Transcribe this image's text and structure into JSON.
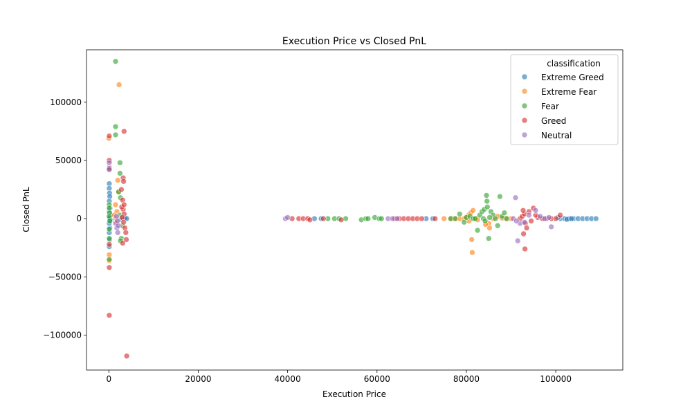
{
  "chart_data": {
    "type": "scatter",
    "title": "Execution Price vs Closed PnL",
    "xlabel": "Execution Price",
    "ylabel": "Closed PnL",
    "xlim": [
      -5000,
      115000
    ],
    "ylim": [
      -130000,
      145000
    ],
    "x_ticks": [
      0,
      20000,
      40000,
      60000,
      80000,
      100000
    ],
    "y_ticks": [
      -100000,
      -50000,
      0,
      50000,
      100000
    ],
    "grid": false,
    "legend": {
      "title": "classification",
      "position": "top-right"
    },
    "series": [
      {
        "name": "Extreme Greed",
        "color": "#1f77b4",
        "points": [
          [
            100,
            30000
          ],
          [
            100,
            26000
          ],
          [
            150,
            22000
          ],
          [
            200,
            19000
          ],
          [
            100,
            15000
          ],
          [
            250,
            9000
          ],
          [
            100,
            6000
          ],
          [
            300,
            3000
          ],
          [
            150,
            1000
          ],
          [
            200,
            0
          ],
          [
            400,
            -1500
          ],
          [
            100,
            -4000
          ],
          [
            200,
            -8000
          ],
          [
            100,
            -12000
          ],
          [
            150,
            -18000
          ],
          [
            100,
            -24000
          ],
          [
            100,
            44000
          ],
          [
            3200,
            0
          ],
          [
            3600,
            500
          ],
          [
            4000,
            0
          ],
          [
            2600,
            -500
          ],
          [
            46000,
            0
          ],
          [
            47500,
            0
          ],
          [
            71000,
            0
          ],
          [
            72500,
            0
          ],
          [
            101000,
            0
          ],
          [
            102000,
            0
          ],
          [
            103000,
            0
          ],
          [
            104000,
            0
          ],
          [
            105000,
            0
          ],
          [
            106000,
            0
          ],
          [
            107000,
            0
          ],
          [
            108000,
            0
          ],
          [
            109000,
            0
          ],
          [
            100500,
            1000
          ],
          [
            102500,
            -600
          ],
          [
            103500,
            0
          ]
        ]
      },
      {
        "name": "Extreme Fear",
        "color": "#ff7f0e",
        "points": [
          [
            2300,
            115000
          ],
          [
            0,
            69000
          ],
          [
            100,
            -31000
          ],
          [
            100,
            -36000
          ],
          [
            1500,
            12000
          ],
          [
            1800,
            6000
          ],
          [
            1200,
            3000
          ],
          [
            1500,
            0
          ],
          [
            2200,
            23000
          ],
          [
            2000,
            33000
          ],
          [
            1700,
            -3000
          ],
          [
            75000,
            0
          ],
          [
            76500,
            0
          ],
          [
            77500,
            0
          ],
          [
            78500,
            0
          ],
          [
            79500,
            0
          ],
          [
            80000,
            1000
          ],
          [
            80500,
            3000
          ],
          [
            81000,
            5000
          ],
          [
            81500,
            7000
          ],
          [
            81200,
            -18000
          ],
          [
            81300,
            -29000
          ],
          [
            80600,
            -2000
          ],
          [
            82000,
            0
          ],
          [
            82500,
            -1000
          ],
          [
            85000,
            -4000
          ],
          [
            85200,
            -8000
          ],
          [
            86000,
            0
          ],
          [
            88000,
            500
          ],
          [
            89000,
            0
          ],
          [
            90000,
            0
          ],
          [
            87000,
            2000
          ],
          [
            84300,
            -5000
          ]
        ]
      },
      {
        "name": "Fear",
        "color": "#2ca02c",
        "points": [
          [
            1500,
            135000
          ],
          [
            1500,
            79000
          ],
          [
            1500,
            72000
          ],
          [
            2500,
            48000
          ],
          [
            2500,
            39000
          ],
          [
            2200,
            23000
          ],
          [
            2600,
            18000
          ],
          [
            100,
            12000
          ],
          [
            100,
            9000
          ],
          [
            150,
            5000
          ],
          [
            100,
            2000
          ],
          [
            200,
            -2000
          ],
          [
            100,
            -9000
          ],
          [
            100,
            -17000
          ],
          [
            100,
            -35000
          ],
          [
            2800,
            -17000
          ],
          [
            2600,
            -19000
          ],
          [
            3000,
            -6000
          ],
          [
            2500,
            3000
          ],
          [
            49000,
            0
          ],
          [
            50500,
            0
          ],
          [
            51500,
            0
          ],
          [
            53000,
            0
          ],
          [
            56500,
            -1000
          ],
          [
            57500,
            0
          ],
          [
            58000,
            0
          ],
          [
            59500,
            1000
          ],
          [
            60500,
            0
          ],
          [
            61000,
            0
          ],
          [
            76500,
            0
          ],
          [
            77500,
            0
          ],
          [
            78500,
            4000
          ],
          [
            79500,
            -3000
          ],
          [
            80000,
            1000
          ],
          [
            80800,
            2000
          ],
          [
            81500,
            0
          ],
          [
            82500,
            -10000
          ],
          [
            83000,
            3000
          ],
          [
            83500,
            6000
          ],
          [
            84000,
            8000
          ],
          [
            84500,
            20000
          ],
          [
            84600,
            15000
          ],
          [
            84700,
            10000
          ],
          [
            85000,
            -17000
          ],
          [
            85500,
            6000
          ],
          [
            86000,
            3000
          ],
          [
            86500,
            0
          ],
          [
            87000,
            -6000
          ],
          [
            87500,
            19000
          ],
          [
            88000,
            2000
          ],
          [
            88500,
            5000
          ],
          [
            89000,
            0
          ],
          [
            83800,
            0
          ],
          [
            84200,
            -2000
          ],
          [
            85200,
            1000
          ],
          [
            82000,
            0
          ]
        ]
      },
      {
        "name": "Greed",
        "color": "#d62728",
        "points": [
          [
            3400,
            75000
          ],
          [
            100,
            71000
          ],
          [
            100,
            50000
          ],
          [
            100,
            43000
          ],
          [
            3200,
            35000
          ],
          [
            3300,
            32000
          ],
          [
            2800,
            25000
          ],
          [
            3100,
            16000
          ],
          [
            3200,
            8000
          ],
          [
            3400,
            4000
          ],
          [
            3000,
            1000
          ],
          [
            3300,
            -3000
          ],
          [
            3600,
            -8000
          ],
          [
            3800,
            -12000
          ],
          [
            3900,
            -18000
          ],
          [
            3100,
            -21000
          ],
          [
            100,
            -22000
          ],
          [
            100,
            -42000
          ],
          [
            100,
            -83000
          ],
          [
            4000,
            -118000
          ],
          [
            2900,
            10000
          ],
          [
            3400,
            12000
          ],
          [
            41000,
            0
          ],
          [
            42500,
            0
          ],
          [
            43500,
            0
          ],
          [
            44500,
            0
          ],
          [
            45000,
            -1000
          ],
          [
            48000,
            0
          ],
          [
            52000,
            -1000
          ],
          [
            64000,
            0
          ],
          [
            65000,
            0
          ],
          [
            66000,
            0
          ],
          [
            67000,
            0
          ],
          [
            68000,
            0
          ],
          [
            69000,
            0
          ],
          [
            70000,
            0
          ],
          [
            73000,
            0
          ],
          [
            92000,
            0
          ],
          [
            92500,
            2000
          ],
          [
            93000,
            4000
          ],
          [
            93200,
            -4000
          ],
          [
            93500,
            -8000
          ],
          [
            92800,
            -13000
          ],
          [
            93100,
            -26000
          ],
          [
            94000,
            6000
          ],
          [
            95000,
            9000
          ],
          [
            96000,
            1000
          ],
          [
            97000,
            0
          ],
          [
            98000,
            0
          ],
          [
            99000,
            0
          ],
          [
            100000,
            0
          ],
          [
            101000,
            3000
          ],
          [
            94500,
            -2000
          ],
          [
            95500,
            3000
          ],
          [
            92700,
            7000
          ]
        ]
      },
      {
        "name": "Neutral",
        "color": "#9467bd",
        "points": [
          [
            100,
            48000
          ],
          [
            100,
            42000
          ],
          [
            1500,
            -4000
          ],
          [
            1800,
            -8000
          ],
          [
            2000,
            -12000
          ],
          [
            1700,
            2000
          ],
          [
            1900,
            -2000
          ],
          [
            2100,
            -6000
          ],
          [
            39500,
            0
          ],
          [
            40000,
            1000
          ],
          [
            62500,
            0
          ],
          [
            63500,
            0
          ],
          [
            64500,
            0
          ],
          [
            91000,
            18000
          ],
          [
            91500,
            -19000
          ],
          [
            92000,
            -4000
          ],
          [
            90500,
            0
          ],
          [
            94000,
            3000
          ],
          [
            95500,
            7000
          ],
          [
            96500,
            2000
          ],
          [
            97500,
            0
          ],
          [
            98500,
            1000
          ],
          [
            99000,
            -7000
          ],
          [
            91200,
            -2000
          ],
          [
            93000,
            -3000
          ]
        ]
      }
    ]
  }
}
